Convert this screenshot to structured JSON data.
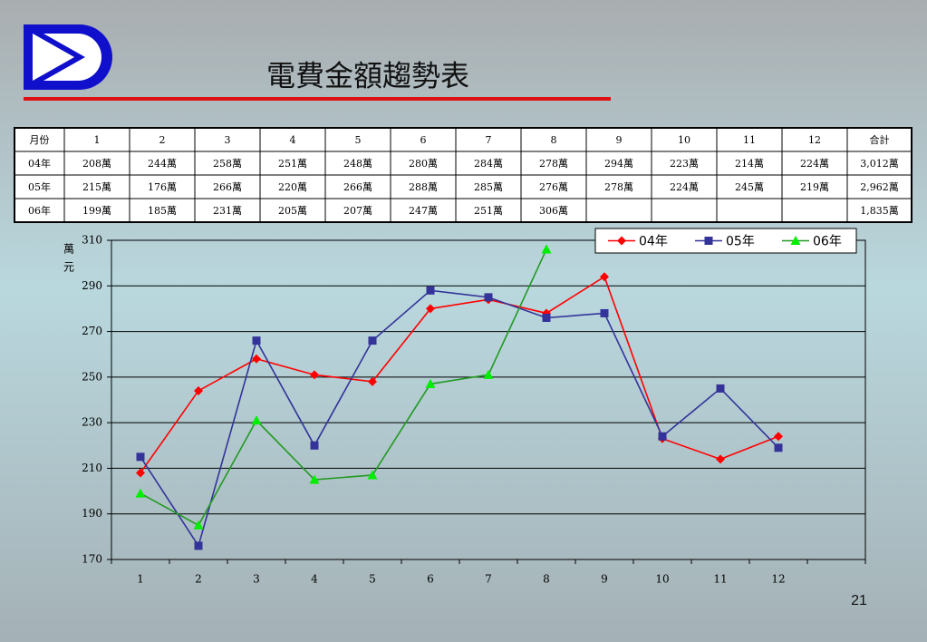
{
  "title": "電費金額趨勢表",
  "page_number": "21",
  "table": {
    "header": [
      "月份",
      "1",
      "2",
      "3",
      "4",
      "5",
      "6",
      "7",
      "8",
      "9",
      "10",
      "11",
      "12",
      "合計"
    ],
    "rows": [
      [
        "04年",
        "208萬",
        "244萬",
        "258萬",
        "251萬",
        "248萬",
        "280萬",
        "284萬",
        "278萬",
        "294萬",
        "223萬",
        "214萬",
        "224萬",
        "3,012萬"
      ],
      [
        "05年",
        "215萬",
        "176萬",
        "266萬",
        "220萬",
        "266萬",
        "288萬",
        "285萬",
        "276萬",
        "278萬",
        "224萬",
        "245萬",
        "219萬",
        "2,962萬"
      ],
      [
        "06年",
        "199萬",
        "185萬",
        "231萬",
        "205萬",
        "207萬",
        "247萬",
        "251萬",
        "306萬",
        null,
        null,
        null,
        null,
        "1,835萬"
      ]
    ]
  },
  "chart_data": {
    "type": "line",
    "y_label": "萬元",
    "categories": [
      "1",
      "2",
      "3",
      "4",
      "5",
      "6",
      "7",
      "8",
      "9",
      "10",
      "11",
      "12",
      null
    ],
    "series": [
      {
        "name": "04年",
        "color": "#ff0000",
        "marker_color": "#ff0000",
        "marker": "diamond",
        "values": [
          208,
          244,
          258,
          251,
          248,
          280,
          284,
          278,
          294,
          223,
          214,
          224,
          null
        ]
      },
      {
        "name": "05年",
        "color": "#333399",
        "marker_color": "#333399",
        "marker": "square",
        "values": [
          215,
          176,
          266,
          220,
          266,
          288,
          285,
          276,
          278,
          224,
          245,
          219,
          null
        ]
      },
      {
        "name": "06年",
        "color": "#229922",
        "marker_color": "#00ee00",
        "marker": "triangle",
        "values": [
          199,
          185,
          231,
          205,
          207,
          247,
          251,
          306,
          null,
          null,
          null,
          null,
          null
        ]
      }
    ],
    "ylim": [
      170,
      310
    ],
    "yticks": [
      170,
      190,
      210,
      230,
      250,
      270,
      290,
      310
    ],
    "grid": true,
    "legend": "top-right"
  }
}
